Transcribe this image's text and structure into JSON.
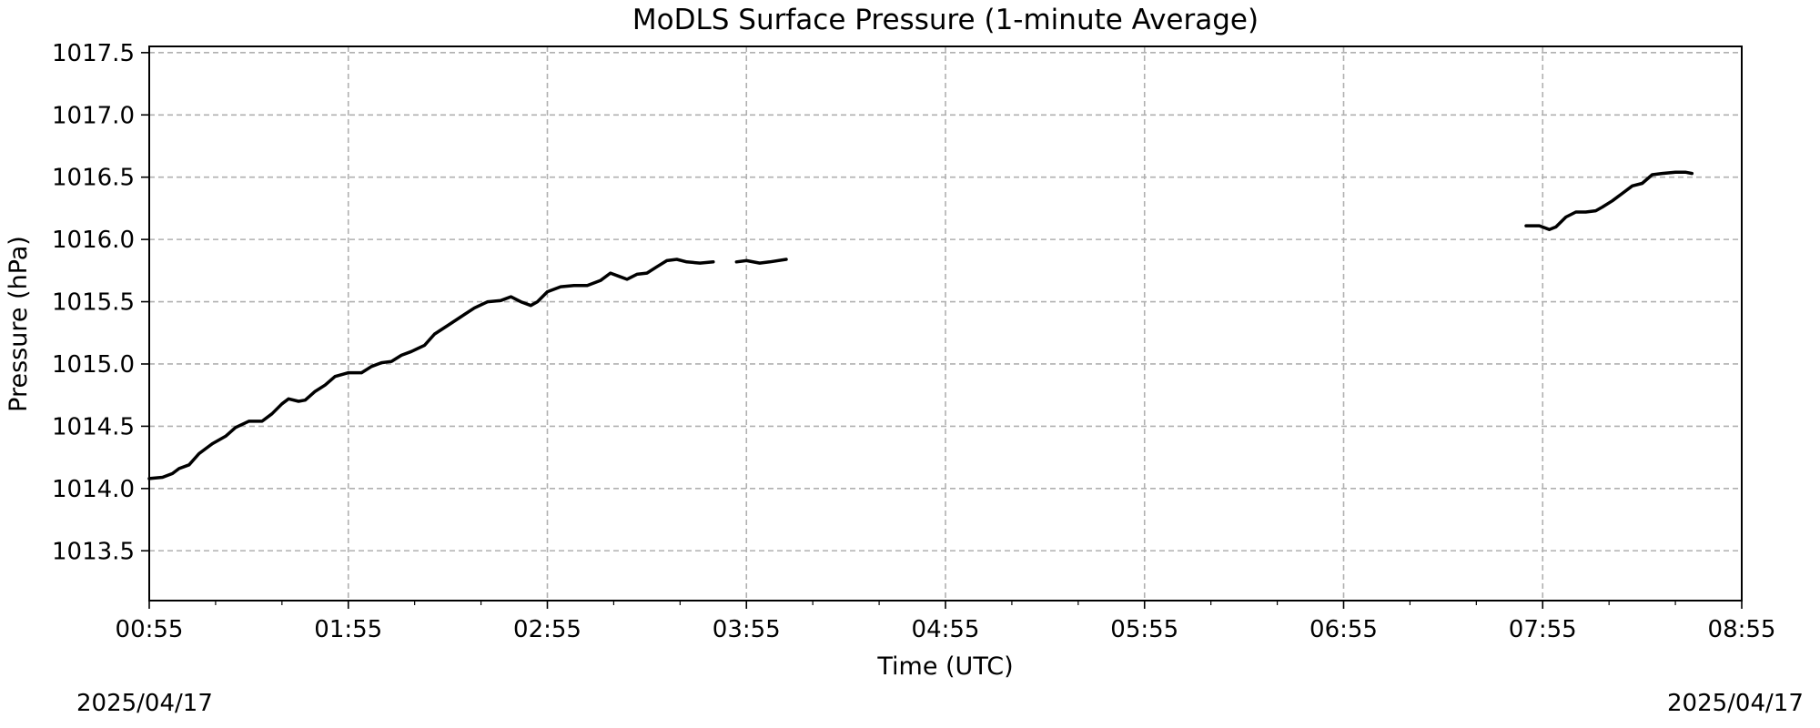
{
  "chart_data": {
    "type": "line",
    "title": "MoDLS Surface Pressure (1-minute Average)",
    "xlabel": "Time (UTC)",
    "ylabel": "Pressure (hPa)",
    "x_ticks": [
      "00:55",
      "01:55",
      "02:55",
      "03:55",
      "04:55",
      "05:55",
      "06:55",
      "07:55",
      "08:55"
    ],
    "y_ticks": [
      "1013.5",
      "1014.0",
      "1014.5",
      "1015.0",
      "1015.5",
      "1016.0",
      "1016.5",
      "1017.0",
      "1017.5"
    ],
    "xlim": [
      "00:55",
      "08:55"
    ],
    "ylim": [
      1013.1,
      1017.55
    ],
    "grid": true,
    "date_labels": {
      "left": "2025/04/17",
      "right": "2025/04/17"
    },
    "series": [
      {
        "color": "#000000",
        "segments": [
          [
            [
              "00:55",
              1014.08
            ],
            [
              "00:59",
              1014.09
            ],
            [
              "01:02",
              1014.12
            ],
            [
              "01:04",
              1014.16
            ],
            [
              "01:07",
              1014.19
            ],
            [
              "01:10",
              1014.28
            ],
            [
              "01:14",
              1014.36
            ],
            [
              "01:18",
              1014.42
            ],
            [
              "01:21",
              1014.49
            ],
            [
              "01:25",
              1014.54
            ],
            [
              "01:29",
              1014.54
            ],
            [
              "01:32",
              1014.6
            ],
            [
              "01:35",
              1014.68
            ],
            [
              "01:37",
              1014.72
            ],
            [
              "01:40",
              1014.7
            ],
            [
              "01:42",
              1014.71
            ],
            [
              "01:45",
              1014.78
            ],
            [
              "01:48",
              1014.83
            ],
            [
              "01:51",
              1014.9
            ],
            [
              "01:55",
              1014.93
            ],
            [
              "01:59",
              1014.93
            ],
            [
              "02:02",
              1014.98
            ],
            [
              "02:05",
              1015.01
            ],
            [
              "02:08",
              1015.02
            ],
            [
              "02:11",
              1015.07
            ],
            [
              "02:14",
              1015.1
            ],
            [
              "02:18",
              1015.15
            ],
            [
              "02:21",
              1015.24
            ],
            [
              "02:25",
              1015.31
            ],
            [
              "02:29",
              1015.38
            ],
            [
              "02:33",
              1015.45
            ],
            [
              "02:37",
              1015.5
            ],
            [
              "02:41",
              1015.51
            ],
            [
              "02:44",
              1015.54
            ],
            [
              "02:47",
              1015.5
            ],
            [
              "02:50",
              1015.47
            ],
            [
              "02:52",
              1015.5
            ],
            [
              "02:55",
              1015.58
            ],
            [
              "02:59",
              1015.62
            ],
            [
              "03:03",
              1015.63
            ],
            [
              "03:07",
              1015.63
            ],
            [
              "03:11",
              1015.67
            ],
            [
              "03:14",
              1015.73
            ],
            [
              "03:17",
              1015.7
            ],
            [
              "03:19",
              1015.68
            ],
            [
              "03:22",
              1015.72
            ],
            [
              "03:25",
              1015.73
            ],
            [
              "03:28",
              1015.78
            ],
            [
              "03:31",
              1015.83
            ],
            [
              "03:34",
              1015.84
            ],
            [
              "03:37",
              1015.82
            ],
            [
              "03:41",
              1015.81
            ],
            [
              "03:45",
              1015.82
            ]
          ],
          [
            [
              "03:52",
              1015.82
            ],
            [
              "03:55",
              1015.83
            ],
            [
              "03:59",
              1015.81
            ],
            [
              "04:02",
              1015.82
            ],
            [
              "04:07",
              1015.84
            ]
          ],
          [
            [
              "07:50",
              1016.11
            ],
            [
              "07:54",
              1016.11
            ],
            [
              "07:57",
              1016.08
            ],
            [
              "07:59",
              1016.1
            ],
            [
              "08:02",
              1016.18
            ],
            [
              "08:05",
              1016.22
            ],
            [
              "08:08",
              1016.22
            ],
            [
              "08:11",
              1016.23
            ],
            [
              "08:13",
              1016.26
            ],
            [
              "08:16",
              1016.31
            ],
            [
              "08:19",
              1016.37
            ],
            [
              "08:22",
              1016.43
            ],
            [
              "08:25",
              1016.45
            ],
            [
              "08:28",
              1016.52
            ],
            [
              "08:31",
              1016.53
            ],
            [
              "08:35",
              1016.54
            ],
            [
              "08:38",
              1016.54
            ],
            [
              "08:40",
              1016.53
            ]
          ]
        ]
      }
    ]
  }
}
